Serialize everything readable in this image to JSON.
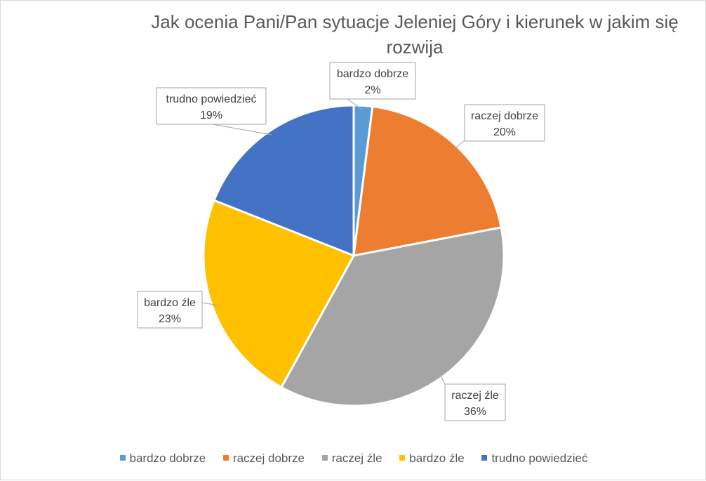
{
  "chart_data": {
    "type": "pie",
    "title": "Jak ocenia Pani/Pan sytuacje Jeleniej Góry i kierunek w jakim się rozwija",
    "title_lines": [
      "Jak ocenia Pani/Pan sytuacje Jeleniej Góry i kierunek w jakim się",
      "rozwija"
    ],
    "slices": [
      {
        "label": "bardzo dobrze",
        "value": 2,
        "value_label": "2%",
        "color": "#5B9BD5"
      },
      {
        "label": "raczej dobrze",
        "value": 20,
        "value_label": "20%",
        "color": "#ED7D31"
      },
      {
        "label": "raczej źle",
        "value": 36,
        "value_label": "36%",
        "color": "#A5A5A5"
      },
      {
        "label": "bardzo źle",
        "value": 23,
        "value_label": "23%",
        "color": "#FFC000"
      },
      {
        "label": "trudno powiedzieć",
        "value": 19,
        "value_label": "19%",
        "color": "#4472C4"
      }
    ],
    "legend_position": "bottom",
    "data_labels": "callouts"
  }
}
